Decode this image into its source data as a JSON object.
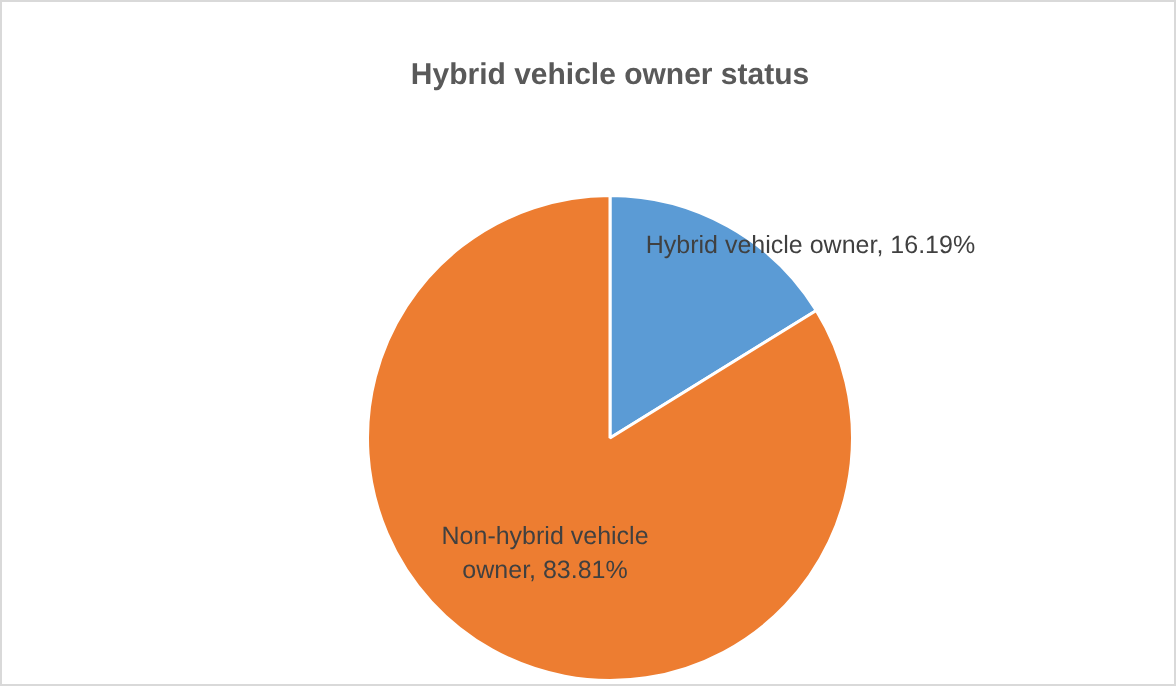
{
  "chart_data": {
    "type": "pie",
    "title": "Hybrid vehicle owner status",
    "categories": [
      "Hybrid vehicle owner",
      "Non-hybrid vehicle owner"
    ],
    "values": [
      16.19,
      83.81
    ],
    "colors": [
      "#5b9bd5",
      "#ed7d31"
    ],
    "value_labels": [
      "16.19%",
      "83.81%"
    ],
    "legend": false
  }
}
